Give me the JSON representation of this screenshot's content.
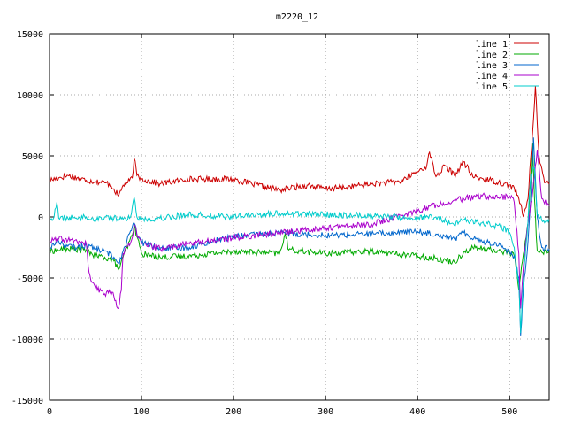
{
  "chart_data": {
    "type": "line",
    "title": "m2220_12",
    "xlabel": "",
    "ylabel": "",
    "xlim": [
      0,
      543
    ],
    "ylim": [
      -15000,
      15000
    ],
    "xticks": [
      0,
      100,
      200,
      300,
      400,
      500
    ],
    "xtick_labels": [
      "0",
      "100",
      "200",
      "300",
      "400",
      "500"
    ],
    "yticks": [
      -15000,
      -10000,
      -5000,
      0,
      5000,
      10000,
      15000
    ],
    "ytick_labels": [
      "-15000",
      "-10000",
      "-5000",
      "0",
      "5000",
      "10000",
      "15000"
    ],
    "grid": true,
    "legend_position": "top-right",
    "series": [
      {
        "name": "line 1",
        "color": "#cc0000",
        "x": [
          0,
          10,
          20,
          30,
          40,
          50,
          60,
          65,
          70,
          75,
          80,
          85,
          90,
          92,
          95,
          100,
          120,
          150,
          200,
          220,
          250,
          280,
          300,
          320,
          350,
          380,
          400,
          410,
          413,
          420,
          430,
          440,
          450,
          460,
          480,
          500,
          505,
          510,
          515,
          520,
          525,
          528,
          532,
          538,
          543
        ],
        "y": [
          3000,
          3200,
          3400,
          3200,
          3000,
          2900,
          2800,
          2700,
          2300,
          1700,
          2600,
          2800,
          3200,
          4800,
          3400,
          3100,
          2700,
          3100,
          3100,
          2700,
          2200,
          2600,
          2300,
          2400,
          2700,
          2900,
          3700,
          4200,
          5300,
          3300,
          4200,
          3400,
          4500,
          3300,
          3000,
          2600,
          2400,
          1500,
          0,
          1500,
          7000,
          10700,
          5000,
          2800,
          2700
        ]
      },
      {
        "name": "line 2",
        "color": "#00aa00",
        "x": [
          0,
          20,
          40,
          50,
          60,
          70,
          75,
          80,
          90,
          92,
          95,
          100,
          120,
          150,
          200,
          250,
          256,
          260,
          300,
          350,
          400,
          420,
          440,
          450,
          460,
          480,
          500,
          505,
          508,
          510,
          512,
          515,
          520,
          525,
          527,
          530,
          535,
          543
        ],
        "y": [
          -2800,
          -2600,
          -2700,
          -3200,
          -3300,
          -3600,
          -4300,
          -3300,
          -1500,
          -700,
          -1600,
          -3000,
          -3300,
          -3200,
          -2800,
          -3000,
          -1400,
          -2700,
          -3000,
          -2800,
          -3200,
          -3400,
          -3700,
          -2900,
          -2500,
          -2700,
          -2900,
          -3200,
          -4500,
          -6000,
          -4800,
          -3000,
          -500,
          6000,
          1500,
          -2800,
          -2900,
          -2800
        ]
      },
      {
        "name": "line 3",
        "color": "#0066cc",
        "x": [
          0,
          10,
          20,
          30,
          40,
          50,
          60,
          70,
          75,
          80,
          90,
          92,
          95,
          100,
          120,
          150,
          200,
          250,
          300,
          350,
          400,
          420,
          440,
          450,
          470,
          490,
          500,
          505,
          510,
          512,
          515,
          520,
          523,
          526,
          530,
          535,
          543
        ],
        "y": [
          -2500,
          -2000,
          -2400,
          -2500,
          -2300,
          -2600,
          -2800,
          -3300,
          -3800,
          -2800,
          -800,
          -500,
          -1400,
          -2100,
          -2600,
          -2500,
          -1600,
          -1300,
          -1500,
          -1400,
          -1200,
          -1400,
          -1800,
          -1300,
          -2000,
          -2300,
          -2900,
          -3200,
          -5000,
          -9700,
          -6000,
          -2000,
          1500,
          6500,
          0,
          -2500,
          -2600
        ]
      },
      {
        "name": "line 4",
        "color": "#aa00cc",
        "x": [
          0,
          10,
          20,
          30,
          40,
          42,
          45,
          50,
          60,
          65,
          70,
          75,
          78,
          80,
          85,
          90,
          92,
          95,
          100,
          120,
          150,
          200,
          250,
          300,
          350,
          400,
          420,
          450,
          470,
          490,
          500,
          505,
          510,
          512,
          515,
          520,
          525,
          530,
          535,
          543
        ],
        "y": [
          -2000,
          -1800,
          -1900,
          -2000,
          -2200,
          -4000,
          -5200,
          -5800,
          -6300,
          -6000,
          -6500,
          -7500,
          -6000,
          -3000,
          -2400,
          -1700,
          -600,
          -1500,
          -2200,
          -2600,
          -2200,
          -1700,
          -1300,
          -900,
          -600,
          500,
          1000,
          1500,
          1700,
          1600,
          1700,
          1200,
          -3000,
          -7500,
          -4000,
          -500,
          2000,
          5500,
          1500,
          900
        ]
      },
      {
        "name": "line 5",
        "color": "#00cccc",
        "x": [
          0,
          5,
          8,
          10,
          20,
          40,
          50,
          60,
          70,
          80,
          88,
          92,
          95,
          100,
          120,
          150,
          200,
          250,
          300,
          350,
          400,
          420,
          440,
          450,
          470,
          490,
          500,
          505,
          510,
          512,
          515,
          520,
          523,
          527,
          530,
          535,
          543
        ],
        "y": [
          -200,
          0,
          1200,
          -100,
          -100,
          0,
          -200,
          0,
          -100,
          -200,
          0,
          1600,
          0,
          -200,
          -100,
          200,
          0,
          300,
          200,
          100,
          -100,
          0,
          -700,
          -200,
          -500,
          -800,
          -1300,
          -2500,
          -5500,
          -9500,
          -5000,
          -300,
          3500,
          4000,
          200,
          -300,
          -200
        ]
      }
    ]
  }
}
